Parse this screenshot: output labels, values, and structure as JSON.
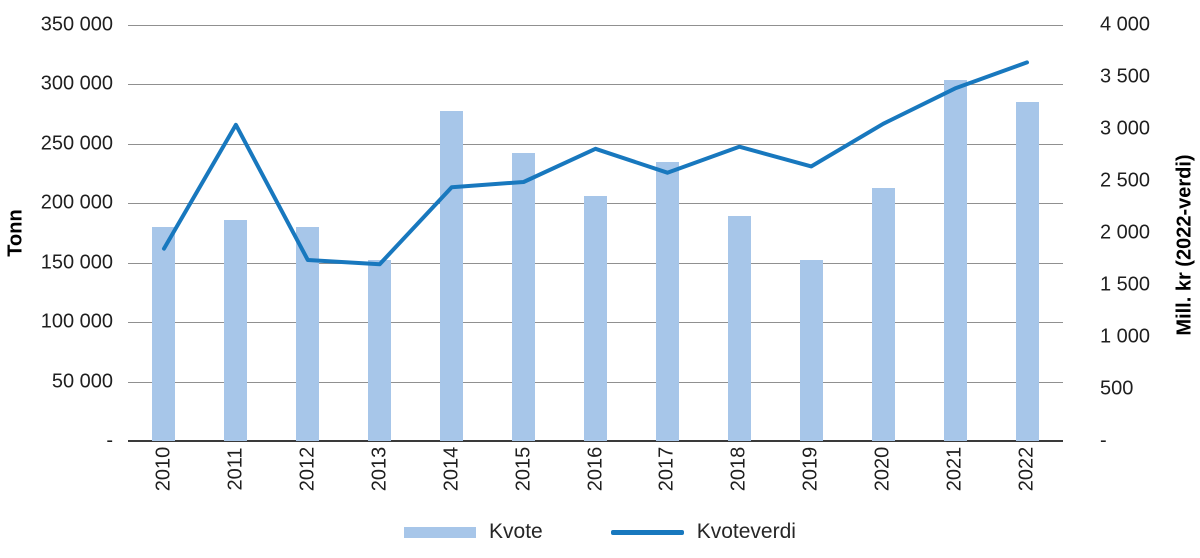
{
  "chart_data": {
    "type": "bar",
    "subtype": "combo-bar-line",
    "categories": [
      "2010",
      "2011",
      "2012",
      "2013",
      "2014",
      "2015",
      "2016",
      "2017",
      "2018",
      "2019",
      "2020",
      "2021",
      "2022"
    ],
    "series": [
      {
        "name": "Kvote",
        "type": "bar",
        "axis": "left",
        "values": [
          180000,
          186000,
          180000,
          152000,
          278000,
          242000,
          206000,
          235000,
          189000,
          152000,
          213000,
          304000,
          285000
        ]
      },
      {
        "name": "Kvoteverdi",
        "type": "line",
        "axis": "right",
        "values": [
          1850,
          3040,
          1740,
          1700,
          2440,
          2490,
          2810,
          2580,
          2830,
          2640,
          3050,
          3390,
          3640
        ]
      }
    ],
    "title": "",
    "xlabel": "",
    "left_axis": {
      "title": "Tonn",
      "min": 0,
      "max": 350000,
      "step": 50000,
      "tick_labels": [
        "350 000",
        "300 000",
        "250 000",
        "200 000",
        "150 000",
        "100 000",
        "50 000",
        "-"
      ]
    },
    "right_axis": {
      "title": "Mill. kr (2022-verdi)",
      "min": 0,
      "max": 4000,
      "step": 500,
      "tick_labels": [
        "4 000",
        "3 500",
        "3 000",
        "2 500",
        "2 000",
        "1 500",
        "1 000",
        "500",
        "-"
      ]
    },
    "grid": true,
    "legend_position": "bottom",
    "legend": [
      {
        "label": "Kvote",
        "swatch": "bar"
      },
      {
        "label": "Kvoteverdi",
        "swatch": "line"
      }
    ],
    "colors": {
      "bar": "#A7C6E9",
      "line": "#1878BE",
      "grid": "#909090",
      "axis_line": "#3a3a3a",
      "text": "#1f1f1f"
    }
  }
}
